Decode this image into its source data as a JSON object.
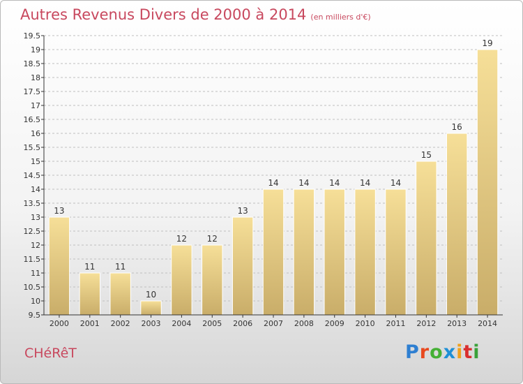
{
  "title": "Autres Revenus Divers de 2000 à 2014",
  "subtitle": "(en milliers d'€)",
  "commune": "CHéRêT",
  "logo": {
    "text": "Proxiti",
    "colors": [
      "#2e7fd1",
      "#e8491f",
      "#45b035",
      "#1e8fd6",
      "#f0a11c",
      "#d92f2f",
      "#3aa13a"
    ]
  },
  "colors": {
    "title": "#c8485e",
    "bar_top": "#f6df98",
    "bar_bottom": "#c9ad69",
    "axis": "#333333",
    "grid": "#bfbfbf"
  },
  "chart_data": {
    "type": "bar",
    "categories": [
      "2000",
      "2001",
      "2002",
      "2003",
      "2004",
      "2005",
      "2006",
      "2007",
      "2008",
      "2009",
      "2010",
      "2011",
      "2012",
      "2013",
      "2014"
    ],
    "values": [
      13,
      11,
      11,
      10,
      12,
      12,
      13,
      14,
      14,
      14,
      14,
      14,
      15,
      16,
      19
    ],
    "data_labels": [
      "13",
      "11",
      "11",
      "10",
      "12",
      "12",
      "13",
      "14",
      "14",
      "14",
      "14",
      "14",
      "15",
      "16",
      "19"
    ],
    "ylim": [
      9.5,
      19.5
    ],
    "yticks": [
      9.5,
      10,
      10.5,
      11,
      11.5,
      12,
      12.5,
      13,
      13.5,
      14,
      14.5,
      15,
      15.5,
      16,
      16.5,
      17,
      17.5,
      18,
      18.5,
      19,
      19.5
    ],
    "ytick_labels": [
      "9.5",
      "10",
      "10.5",
      "11",
      "11.5",
      "12",
      "12.5",
      "13",
      "13.5",
      "14",
      "14.5",
      "15",
      "15.5",
      "16",
      "16.5",
      "17",
      "17.5",
      "18",
      "18.5",
      "19",
      "19.5"
    ],
    "grid": "horizontal dashed",
    "xlabel": "",
    "ylabel": ""
  }
}
